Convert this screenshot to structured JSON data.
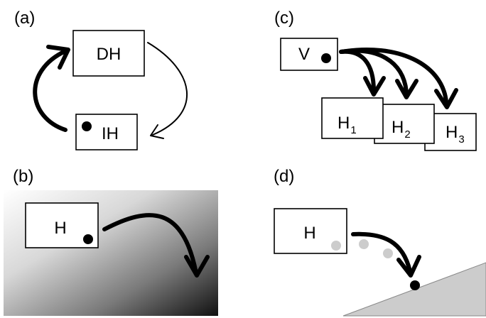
{
  "panels": {
    "a": {
      "label": "(a)",
      "box_top": "DH",
      "box_bottom": "IH"
    },
    "b": {
      "label": "(b)",
      "box": "H",
      "gradient_colors": [
        "#ffffff",
        "#101010"
      ]
    },
    "c": {
      "label": "(c)",
      "source": "V",
      "targets": [
        {
          "letter": "H",
          "sub": "1"
        },
        {
          "letter": "H",
          "sub": "2"
        },
        {
          "letter": "H",
          "sub": "3"
        }
      ]
    },
    "d": {
      "label": "(d)",
      "box": "H",
      "slope_color": "#cccccc",
      "ghost_ball_color": "#cccccc"
    }
  },
  "colors": {
    "ink": "#000000",
    "background": "#ffffff"
  }
}
